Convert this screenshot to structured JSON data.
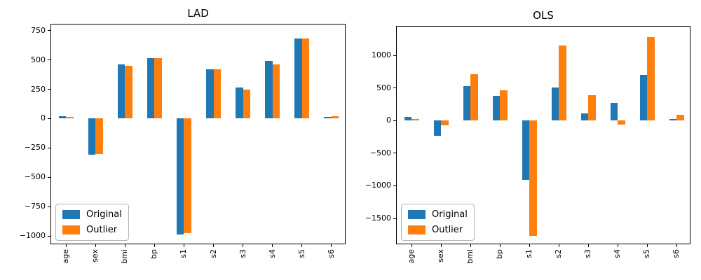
{
  "figure": {
    "background": "#ffffff",
    "text_color": "#000000"
  },
  "chart_data": [
    {
      "id": "lad",
      "type": "bar",
      "title": "LAD",
      "categories": [
        "age",
        "sex",
        "bmi",
        "bp",
        "s1",
        "s2",
        "s3",
        "s4",
        "s5",
        "s6"
      ],
      "series": [
        {
          "name": "Original",
          "color": "#1f77b4",
          "values": [
            22,
            -305,
            460,
            515,
            -990,
            420,
            265,
            490,
            685,
            15
          ]
        },
        {
          "name": "Outlier",
          "color": "#ff7f0e",
          "values": [
            13,
            -300,
            450,
            515,
            -975,
            420,
            245,
            460,
            685,
            22
          ]
        }
      ],
      "ylim": [
        -1077,
        802
      ],
      "yticks": [
        750,
        500,
        250,
        0,
        -250,
        -500,
        -750,
        -1000
      ],
      "xlabel": "",
      "ylabel": "",
      "grid": false,
      "legend_position": "lower left",
      "legend_labels": [
        "Original",
        "Outlier"
      ]
    },
    {
      "id": "ols",
      "type": "bar",
      "title": "OLS",
      "categories": [
        "age",
        "sex",
        "bmi",
        "bp",
        "s1",
        "s2",
        "s3",
        "s4",
        "s5",
        "s6"
      ],
      "series": [
        {
          "name": "Original",
          "color": "#1f77b4",
          "values": [
            55,
            -235,
            535,
            385,
            -910,
            510,
            115,
            270,
            700,
            30
          ]
        },
        {
          "name": "Outlier",
          "color": "#ff7f0e",
          "values": [
            25,
            -75,
            715,
            465,
            -1770,
            1150,
            395,
            -55,
            1285,
            95
          ]
        }
      ],
      "ylim": [
        -1908,
        1444
      ],
      "yticks": [
        1000,
        500,
        0,
        -500,
        -1000,
        -1500
      ],
      "xlabel": "",
      "ylabel": "",
      "grid": false,
      "legend_position": "lower left",
      "legend_labels": [
        "Original",
        "Outlier"
      ]
    }
  ]
}
